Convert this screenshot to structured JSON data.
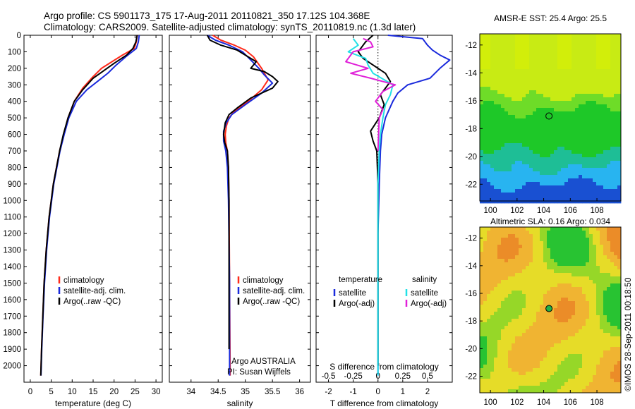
{
  "header": {
    "line1": "Argo profile: CS 5901173_175 17-Aug-2011 20110821_350 17.12S 104.368E",
    "line2": "Climatology: CARS2009. Satellite-adjusted climatology: synTS_20110819.nc (1.3d later)"
  },
  "side_stamp": "©IMOS 28-Sep-2011 00:18:50",
  "colors": {
    "climatology": "#ff2a1a",
    "satellite": "#1a2adc",
    "argo": "#000000",
    "sal_satellite": "#22e0e6",
    "sal_argo": "#e020d8"
  },
  "chart_data": [
    {
      "type": "line",
      "xlabel": "temperature (deg C)",
      "ylabel": "",
      "xlim": [
        -1.5,
        31.5
      ],
      "ylim": [
        2100,
        0
      ],
      "xticks": [
        0,
        5,
        10,
        15,
        20,
        25,
        30
      ],
      "yticks": [
        0,
        100,
        200,
        300,
        400,
        500,
        600,
        700,
        800,
        900,
        1000,
        1100,
        1200,
        1300,
        1400,
        1500,
        1600,
        1700,
        1800,
        1900,
        2000
      ],
      "legend": [
        "climatology",
        "satellite-adj. clim.",
        "Argo(..raw -QC)"
      ],
      "series": [
        {
          "name": "climatology",
          "points": [
            [
              25.5,
              0
            ],
            [
              25.3,
              40
            ],
            [
              24.8,
              80
            ],
            [
              22,
              120
            ],
            [
              19.5,
              160
            ],
            [
              17,
              200
            ],
            [
              15,
              250
            ],
            [
              12.5,
              320
            ],
            [
              10.5,
              400
            ],
            [
              9,
              500
            ],
            [
              8,
              600
            ],
            [
              7,
              700
            ],
            [
              5.5,
              900
            ],
            [
              4.5,
              1100
            ],
            [
              3.8,
              1300
            ],
            [
              3.3,
              1500
            ],
            [
              3,
              1700
            ],
            [
              2.7,
              1900
            ],
            [
              2.5,
              2060
            ]
          ]
        },
        {
          "name": "satellite-adj. clim.",
          "points": [
            [
              26,
              0
            ],
            [
              25.8,
              40
            ],
            [
              25.3,
              80
            ],
            [
              22.8,
              130
            ],
            [
              20.5,
              180
            ],
            [
              18.5,
              230
            ],
            [
              16.5,
              270
            ],
            [
              13.5,
              330
            ],
            [
              11,
              400
            ],
            [
              9.2,
              500
            ],
            [
              8.1,
              600
            ],
            [
              7.1,
              700
            ],
            [
              5.6,
              900
            ],
            [
              4.6,
              1100
            ],
            [
              3.9,
              1300
            ],
            [
              3.4,
              1500
            ],
            [
              3.05,
              1700
            ],
            [
              2.75,
              1900
            ],
            [
              2.55,
              2060
            ]
          ]
        },
        {
          "name": "Argo(..raw -QC)",
          "points": [
            [
              25.5,
              0
            ],
            [
              25.2,
              40
            ],
            [
              24.5,
              80
            ],
            [
              23,
              120
            ],
            [
              20,
              170
            ],
            [
              17.5,
              215
            ],
            [
              15,
              260
            ],
            [
              12.5,
              330
            ],
            [
              10.5,
              400
            ],
            [
              9,
              500
            ],
            [
              7.9,
              600
            ],
            [
              7,
              700
            ],
            [
              5.5,
              900
            ],
            [
              4.5,
              1100
            ],
            [
              3.8,
              1300
            ],
            [
              3.3,
              1500
            ],
            [
              3,
              1700
            ],
            [
              2.7,
              1900
            ],
            [
              2.5,
              2060
            ]
          ]
        }
      ]
    },
    {
      "type": "line",
      "xlabel": "salinity",
      "ylabel": "",
      "xlim": [
        33.6,
        36.2
      ],
      "ylim": [
        2100,
        0
      ],
      "xticks": [
        34,
        34.5,
        35,
        35.5,
        36
      ],
      "legend": [
        "climatology",
        "satellite-adj. clim.",
        "Argo(..raw -QC)"
      ],
      "annotation": [
        "Argo AUSTRALIA",
        "PI: Susan Wijffels"
      ],
      "series": [
        {
          "name": "climatology",
          "points": [
            [
              34.4,
              0
            ],
            [
              34.55,
              30
            ],
            [
              34.8,
              60
            ],
            [
              35,
              90
            ],
            [
              35.15,
              130
            ],
            [
              35.3,
              200
            ],
            [
              35.42,
              270
            ],
            [
              35.3,
              330
            ],
            [
              35.05,
              400
            ],
            [
              34.8,
              460
            ],
            [
              34.7,
              500
            ],
            [
              34.65,
              550
            ],
            [
              34.63,
              600
            ],
            [
              34.64,
              650
            ],
            [
              34.67,
              700
            ],
            [
              34.69,
              800
            ],
            [
              34.7,
              1000
            ],
            [
              34.71,
              1500
            ],
            [
              34.72,
              2060
            ]
          ]
        },
        {
          "name": "satellite-adj. clim.",
          "points": [
            [
              34.3,
              0
            ],
            [
              34.45,
              30
            ],
            [
              34.7,
              60
            ],
            [
              34.95,
              100
            ],
            [
              35.1,
              150
            ],
            [
              35.25,
              200
            ],
            [
              35.35,
              240
            ],
            [
              35.5,
              290
            ],
            [
              35.3,
              350
            ],
            [
              35,
              420
            ],
            [
              34.75,
              480
            ],
            [
              34.65,
              530
            ],
            [
              34.6,
              580
            ],
            [
              34.6,
              640
            ],
            [
              34.64,
              700
            ],
            [
              34.67,
              800
            ],
            [
              34.69,
              1000
            ],
            [
              34.71,
              1500
            ],
            [
              34.71,
              2060
            ]
          ]
        },
        {
          "name": "Argo(..raw -QC)",
          "points": [
            [
              34.3,
              0
            ],
            [
              34.35,
              30
            ],
            [
              34.55,
              60
            ],
            [
              34.85,
              90
            ],
            [
              35,
              120
            ],
            [
              35.2,
              160
            ],
            [
              35.1,
              200
            ],
            [
              35.35,
              220
            ],
            [
              35.5,
              250
            ],
            [
              35.6,
              280
            ],
            [
              35.5,
              320
            ],
            [
              35.1,
              380
            ],
            [
              34.85,
              440
            ],
            [
              34.7,
              480
            ],
            [
              34.63,
              530
            ],
            [
              34.6,
              600
            ],
            [
              34.62,
              650
            ],
            [
              34.67,
              700
            ],
            [
              34.69,
              800
            ],
            [
              34.7,
              1000
            ],
            [
              34.7,
              1500
            ],
            [
              34.7,
              1900
            ]
          ]
        }
      ]
    },
    {
      "type": "line",
      "xlabel": "T difference from climatology",
      "xlabel2": "S difference from climatology",
      "xlim": [
        -2.5,
        3
      ],
      "ylim": [
        2100,
        0
      ],
      "xticks": [
        -2,
        -1,
        0,
        1,
        2
      ],
      "xticks_top": [
        "-0.5",
        "-0.25",
        "0",
        "0.25",
        "0.5"
      ],
      "legend_left_title": "temperature",
      "legend_right_title": "salinity",
      "legend_left": [
        "satellite",
        "Argo(-adj)"
      ],
      "legend_right": [
        "satellite",
        "Argo(-adj)"
      ],
      "series": [
        {
          "name": "T satellite",
          "points": [
            [
              0.4,
              0
            ],
            [
              1.8,
              20
            ],
            [
              2,
              60
            ],
            [
              2.2,
              90
            ],
            [
              2.5,
              120
            ],
            [
              2.9,
              150
            ],
            [
              2.5,
              200
            ],
            [
              2.1,
              260
            ],
            [
              1.2,
              300
            ],
            [
              0.8,
              350
            ],
            [
              0.6,
              400
            ],
            [
              0.45,
              450
            ],
            [
              0.3,
              500
            ],
            [
              0.15,
              600
            ],
            [
              0.1,
              700
            ],
            [
              0.05,
              900
            ],
            [
              0,
              1200
            ],
            [
              0,
              2060
            ]
          ]
        },
        {
          "name": "T Argo(-adj)",
          "points": [
            [
              -0.2,
              0
            ],
            [
              -0.5,
              40
            ],
            [
              -0.8,
              100
            ],
            [
              -0.6,
              140
            ],
            [
              -0.2,
              180
            ],
            [
              0.3,
              230
            ],
            [
              0.5,
              280
            ],
            [
              0.3,
              320
            ],
            [
              0.1,
              360
            ],
            [
              0.25,
              420
            ],
            [
              0.05,
              500
            ],
            [
              -0.3,
              580
            ],
            [
              -0.2,
              640
            ],
            [
              -0.05,
              700
            ],
            [
              0,
              900
            ],
            [
              0,
              2000
            ]
          ]
        },
        {
          "name": "S satellite",
          "points": [
            [
              -1,
              20
            ],
            [
              -0.8,
              60
            ],
            [
              -1.2,
              100
            ],
            [
              -0.5,
              140
            ],
            [
              -0.4,
              180
            ],
            [
              -0.2,
              230
            ],
            [
              0.6,
              300
            ],
            [
              0.5,
              360
            ],
            [
              0.3,
              420
            ],
            [
              0.2,
              500
            ],
            [
              0.1,
              600
            ],
            [
              0.05,
              700
            ],
            [
              0,
              900
            ],
            [
              0,
              2060
            ]
          ]
        },
        {
          "name": "S Argo(-adj)",
          "points": [
            [
              -0.6,
              20
            ],
            [
              -0.3,
              40
            ],
            [
              -0.2,
              70
            ],
            [
              -1,
              100
            ],
            [
              -1.3,
              160
            ],
            [
              -0.4,
              200
            ],
            [
              -1.1,
              230
            ],
            [
              -0.3,
              260
            ],
            [
              0.7,
              300
            ],
            [
              0.2,
              340
            ],
            [
              -0.1,
              400
            ],
            [
              0.2,
              450
            ],
            [
              0.05,
              500
            ],
            [
              0,
              700
            ]
          ]
        }
      ]
    },
    {
      "type": "heatmap",
      "title": "AMSR-E SST: 25.4 Argo: 25.5",
      "xlim": [
        99.2,
        109.8
      ],
      "ylim": [
        -23.2,
        -11.2
      ],
      "xticks": [
        100,
        102,
        104,
        106,
        108
      ],
      "yticks": [
        -12,
        -14,
        -16,
        -18,
        -20,
        -22
      ],
      "marker": [
        104.4,
        -17.1
      ]
    },
    {
      "type": "heatmap",
      "title": "Altimetric SLA: 0.16 Argo: 0.034",
      "xlim": [
        99.2,
        109.8
      ],
      "ylim": [
        -23.2,
        -11.2
      ],
      "xticks": [
        100,
        102,
        104,
        106,
        108
      ],
      "yticks": [
        -12,
        -14,
        -16,
        -18,
        -20,
        -22
      ],
      "marker": [
        104.4,
        -17.1
      ]
    }
  ]
}
